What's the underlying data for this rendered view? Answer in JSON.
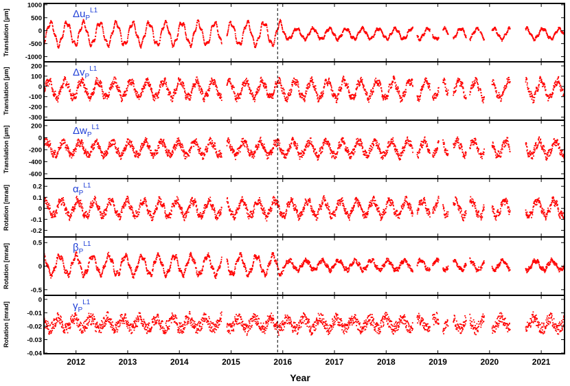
{
  "figure": {
    "xlabel": "Year",
    "event_line_year": 2015.9,
    "colors": {
      "series": "#ff0000",
      "label": "#1f3fd6",
      "axis": "#000000"
    }
  },
  "chart_data": [
    {
      "type": "scatter",
      "label_main": "Δu",
      "label_sub": "P",
      "label_sup": "L1",
      "ylabel": "Translation [μm]",
      "ylim": [
        -1200,
        1050
      ],
      "yticks": [
        1000,
        500,
        0,
        -500,
        -1000
      ],
      "ytick_labels": [
        "1000",
        "500",
        "0",
        "-500",
        "-1000"
      ],
      "signal": {
        "offset": -120,
        "amp_early": 420,
        "amp_late": 200,
        "noise": 40
      },
      "summary": {
        "typical_range": [
          -700,
          400
        ]
      }
    },
    {
      "type": "scatter",
      "label_main": "Δv",
      "label_sub": "P",
      "label_sup": "L1",
      "ylabel": "Translation [μm]",
      "ylim": [
        -330,
        240
      ],
      "yticks": [
        200,
        100,
        0,
        -100,
        -200,
        -300
      ],
      "ytick_labels": [
        "200",
        "100",
        "0",
        "-100",
        "-200",
        "-300"
      ],
      "signal": {
        "offset": -30,
        "amp_early": 80,
        "amp_late": 85,
        "noise": 30
      },
      "summary": {
        "typical_range": [
          -200,
          130
        ]
      }
    },
    {
      "type": "scatter",
      "label_main": "Δw",
      "label_sub": "P",
      "label_sup": "L1",
      "ylabel": "Translation [μm]",
      "ylim": [
        -680,
        290
      ],
      "yticks": [
        200,
        0,
        -200,
        -400,
        -600
      ],
      "ytick_labels": [
        "200",
        "0",
        "-200",
        "-400",
        "-600"
      ],
      "signal": {
        "offset": -180,
        "amp_early": 110,
        "amp_late": 120,
        "noise": 55
      },
      "summary": {
        "typical_range": [
          -450,
          130
        ]
      }
    },
    {
      "type": "scatter",
      "label_main": "α",
      "label_sub": "P",
      "label_sup": "L1",
      "ylabel": "Rotation [mrad]",
      "ylim": [
        -0.26,
        0.27
      ],
      "yticks": [
        0.2,
        0.1,
        0,
        -0.1,
        -0.2
      ],
      "ytick_labels": [
        "0.2",
        "0.1",
        "0",
        "-0.1",
        "-0.2"
      ],
      "signal": {
        "offset": 0.0,
        "amp_early": 0.07,
        "amp_late": 0.07,
        "noise": 0.03
      },
      "summary": {
        "typical_range": [
          -0.2,
          0.13
        ]
      }
    },
    {
      "type": "scatter",
      "label_main": "β",
      "label_sub": "P",
      "label_sup": "L1",
      "ylabel": "Rotation [mrad]",
      "ylim": [
        -0.62,
        0.62
      ],
      "yticks": [
        0.5,
        0,
        -0.5
      ],
      "ytick_labels": [
        "0.5",
        "0",
        "-0.5"
      ],
      "signal": {
        "offset": 0.02,
        "amp_early": 0.2,
        "amp_late": 0.1,
        "noise": 0.04
      },
      "summary": {
        "typical_range": [
          -0.3,
          0.35
        ]
      }
    },
    {
      "type": "scatter",
      "label_main": "γ",
      "label_sub": "P",
      "label_sup": "L1",
      "ylabel": "Rotation [mrad]",
      "ylim": [
        -0.0405,
        0.003
      ],
      "yticks": [
        0,
        -0.01,
        -0.02,
        -0.03,
        -0.04
      ],
      "ytick_labels": [
        "0",
        "-0.01",
        "-0.02",
        "-0.03",
        "-0.04"
      ],
      "signal": {
        "offset": -0.018,
        "amp_early": 0.004,
        "amp_late": 0.004,
        "noise": 0.004
      },
      "summary": {
        "typical_range": [
          -0.032,
          -0.003
        ]
      }
    }
  ],
  "x_axis": {
    "xlim": [
      2011.38,
      2021.45
    ],
    "ticks": [
      2012,
      2013,
      2014,
      2015,
      2016,
      2017,
      2018,
      2019,
      2020,
      2021
    ],
    "tick_labels": [
      "2012",
      "2013",
      "2014",
      "2015",
      "2016",
      "2017",
      "2018",
      "2019",
      "2020",
      "2021"
    ],
    "data_spans": [
      [
        2011.38,
        2014.82
      ],
      [
        2014.92,
        2018.52
      ],
      [
        2018.6,
        2018.85
      ],
      [
        2018.9,
        2019.02
      ],
      [
        2019.1,
        2019.2
      ],
      [
        2019.3,
        2019.55
      ],
      [
        2019.62,
        2019.8
      ],
      [
        2019.82,
        2019.9
      ],
      [
        2020.05,
        2020.4
      ],
      [
        2020.7,
        2021.45
      ]
    ]
  }
}
